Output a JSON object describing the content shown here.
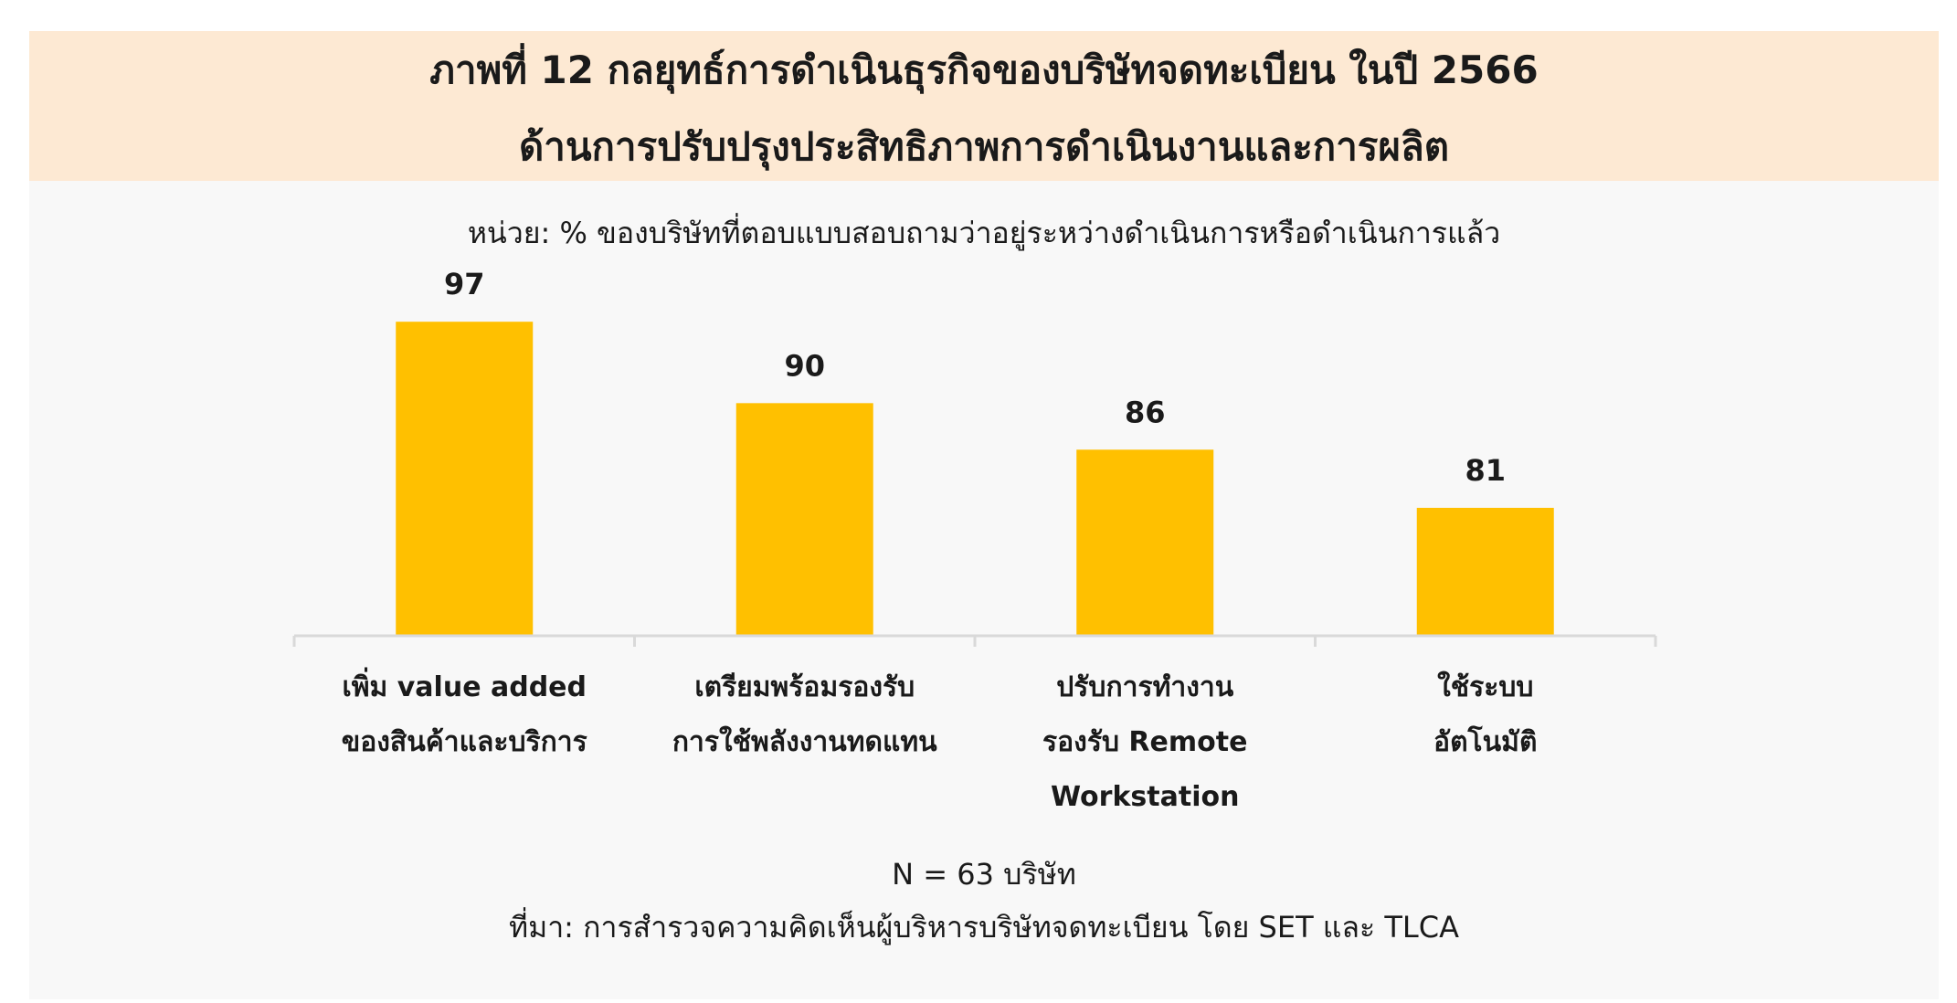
{
  "header": {
    "title_line_1": "ภาพที่ 12 กลยุทธ์การดำเนินธุรกิจของบริษัทจดทะเบียน ในปี 2566",
    "title_line_2": "ด้านการปรับปรุงประสิทธิภาพการดำเนินงานและการผลิต"
  },
  "unit_label": "หน่วย: % ของบริษัทที่ตอบแบบสอบถามว่าอยู่ระหว่างดำเนินการหรือดำเนินการแล้ว",
  "chart_data": {
    "type": "bar",
    "categories": [
      [
        "เพิ่ม value added",
        "ของสินค้าและบริการ"
      ],
      [
        "เตรียมพร้อมรองรับ",
        "การใช้พลังงานทดแทน"
      ],
      [
        "ปรับการทำงาน",
        "รองรับ Remote",
        "Workstation"
      ],
      [
        "ใช้ระบบ",
        "อัตโนมัติ"
      ]
    ],
    "values": [
      97,
      90,
      86,
      81
    ],
    "data_labels": [
      "97",
      "90",
      "86",
      "81"
    ],
    "title": "",
    "xlabel": "",
    "ylabel": "",
    "ylim": [
      70,
      100
    ],
    "bar_color": "#ffc000",
    "axis_color": "#d9d9d9",
    "grid": false,
    "legend": "none"
  },
  "footer": {
    "sample_note": "N = 63 บริษัท",
    "source_note": "ที่มา: การสำรวจความคิดเห็นผู้บริหารบริษัทจดทะเบียน โดย SET และ TLCA"
  }
}
